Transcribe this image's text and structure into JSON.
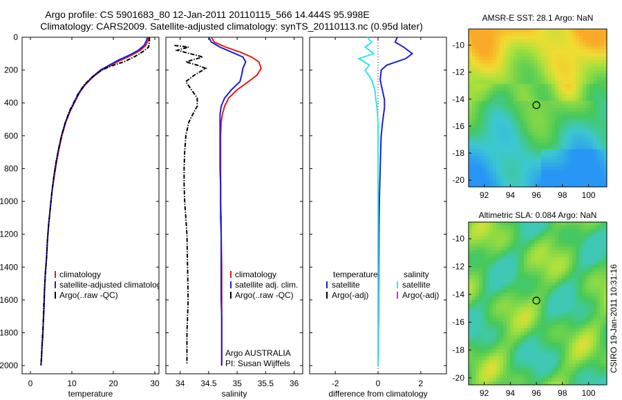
{
  "header": {
    "line1": "Argo profile: CS 5901683_80 12-Jan-2011 20110115_566 14.444S 95.998E",
    "line2": "Climatology: CARS2009. Satellite-adjusted climatology: synTS_20110113.nc (0.95d later)"
  },
  "credit": "CSIRO 19-Jan-2011 10:31:16",
  "colors": {
    "climatology": "#e41a1c",
    "satellite": "#1c1cd8",
    "argo": "#000000",
    "satellite_diff_sal": "#2ee6e6",
    "argo_adj_sal": "#e020e0"
  },
  "chart_data": [
    {
      "type": "line",
      "id": "temperature",
      "xlabel": "temperature",
      "ylabel": "",
      "xlim": [
        -2,
        31
      ],
      "ylim": [
        2050,
        0
      ],
      "xticks": [
        0,
        10,
        20,
        30
      ],
      "yticks": [
        0,
        200,
        400,
        600,
        800,
        1000,
        1200,
        1400,
        1600,
        1800,
        2000
      ],
      "legend": [
        "climatology",
        "satellite-adjusted climatology",
        "Argo(..raw -QC)"
      ],
      "series": [
        {
          "name": "climatology",
          "color": "#e41a1c",
          "style": "solid",
          "x": [
            28.5,
            28.4,
            27.8,
            26.5,
            24.3,
            21.8,
            19.4,
            17.2,
            15.2,
            13.2,
            11.8,
            10.6,
            9.6,
            8.5,
            7.6,
            6.9,
            6.3,
            5.8,
            5.2,
            4.8,
            4.4,
            4.1,
            3.9,
            3.6,
            3.4,
            3.3,
            3.1,
            3.0,
            2.8,
            2.7,
            2.6,
            2.55
          ],
          "y": [
            0,
            20,
            50,
            80,
            110,
            140,
            170,
            200,
            240,
            290,
            340,
            400,
            450,
            520,
            600,
            680,
            760,
            840,
            940,
            1040,
            1140,
            1240,
            1340,
            1440,
            1540,
            1640,
            1740,
            1820,
            1880,
            1940,
            1980,
            2000
          ]
        },
        {
          "name": "satellite-adjusted climatology",
          "color": "#1c1cd8",
          "style": "solid",
          "x": [
            28.2,
            28.0,
            27.4,
            26.0,
            23.8,
            21.2,
            19.0,
            16.9,
            15.0,
            13.1,
            11.7,
            10.5,
            9.5,
            8.4,
            7.5,
            6.8,
            6.2,
            5.7,
            5.2,
            4.8,
            4.4,
            4.1,
            3.9,
            3.6,
            3.4,
            3.3,
            3.1,
            3.0,
            2.8,
            2.7,
            2.6,
            2.55
          ],
          "y": [
            0,
            20,
            50,
            80,
            110,
            140,
            170,
            200,
            240,
            290,
            340,
            400,
            450,
            520,
            600,
            680,
            760,
            840,
            940,
            1040,
            1140,
            1240,
            1340,
            1440,
            1540,
            1640,
            1740,
            1820,
            1880,
            1940,
            1980,
            2000
          ]
        },
        {
          "name": "Argo(..raw -QC)",
          "color": "#000000",
          "style": "dashdot",
          "x": [
            28.7,
            28.7,
            28.5,
            27.0,
            25.0,
            22.5,
            19.5,
            17.2,
            15.0,
            13.0,
            11.6,
            10.4,
            9.4,
            8.4,
            7.5,
            6.8,
            6.2,
            5.7,
            5.2,
            4.8,
            4.4,
            4.1,
            3.9,
            3.6,
            3.4,
            3.2,
            3.1,
            2.9,
            2.8,
            2.7,
            2.6,
            2.5
          ],
          "y": [
            0,
            30,
            60,
            90,
            120,
            150,
            175,
            200,
            240,
            290,
            340,
            400,
            450,
            520,
            600,
            680,
            760,
            840,
            940,
            1040,
            1140,
            1240,
            1340,
            1440,
            1540,
            1640,
            1740,
            1820,
            1880,
            1940,
            1980,
            2000
          ]
        }
      ]
    },
    {
      "type": "line",
      "id": "salinity",
      "xlabel": "salinity",
      "ylabel": "",
      "xlim": [
        33.75,
        36.15
      ],
      "ylim": [
        2050,
        0
      ],
      "xticks": [
        34,
        34.5,
        35,
        35.5,
        36
      ],
      "legend": [
        "climatology",
        "satellite adj. clim.",
        "Argo(..raw -QC)"
      ],
      "annotation": [
        "Argo AUSTRALIA",
        "PI: Susan Wijffels"
      ],
      "series": [
        {
          "name": "climatology",
          "color": "#e41a1c",
          "style": "solid",
          "x": [
            34.55,
            34.6,
            34.8,
            35.05,
            35.25,
            35.38,
            35.42,
            35.35,
            35.2,
            35.0,
            34.85,
            34.78,
            34.74,
            34.72,
            34.71,
            34.71,
            34.71,
            34.71,
            34.71,
            34.72,
            34.72,
            34.73,
            34.73,
            34.73,
            34.73,
            34.73,
            34.73
          ],
          "y": [
            0,
            30,
            60,
            90,
            120,
            150,
            190,
            230,
            270,
            320,
            370,
            420,
            470,
            520,
            600,
            700,
            800,
            900,
            1000,
            1100,
            1200,
            1400,
            1600,
            1700,
            1800,
            1900,
            2000
          ]
        },
        {
          "name": "satellite adj. clim.",
          "color": "#1c1cd8",
          "style": "solid",
          "x": [
            34.5,
            34.55,
            34.7,
            34.9,
            35.1,
            35.15,
            35.1,
            35.08,
            35.05,
            34.9,
            34.78,
            34.72,
            34.7,
            34.7,
            34.7,
            34.7,
            34.7,
            34.71,
            34.71,
            34.71,
            34.72,
            34.72,
            34.72,
            34.73,
            34.73,
            34.73,
            34.73
          ],
          "y": [
            0,
            30,
            60,
            90,
            120,
            150,
            190,
            230,
            270,
            320,
            370,
            420,
            470,
            520,
            600,
            700,
            800,
            900,
            1000,
            1100,
            1200,
            1400,
            1600,
            1700,
            1800,
            1900,
            2000
          ]
        },
        {
          "name": "Argo(..raw -QC)",
          "color": "#000000",
          "style": "dashdot",
          "x": [
            33.9,
            34.15,
            33.95,
            34.4,
            34.1,
            34.3,
            34.45,
            34.25,
            34.1,
            34.2,
            34.3,
            34.3,
            34.22,
            34.15,
            34.1,
            34.08,
            34.07,
            34.07,
            34.08,
            34.1,
            34.12,
            34.13,
            34.14,
            34.13,
            34.12,
            34.12,
            34.12
          ],
          "y": [
            50,
            60,
            80,
            120,
            150,
            170,
            190,
            230,
            270,
            320,
            370,
            420,
            470,
            520,
            600,
            700,
            800,
            900,
            1000,
            1100,
            1200,
            1400,
            1600,
            1700,
            1800,
            1900,
            1990
          ]
        }
      ]
    },
    {
      "type": "line",
      "id": "difference",
      "xlabel": "difference from climatology",
      "ylabel": "",
      "xlim": [
        -3.2,
        3.2
      ],
      "ylim": [
        2050,
        0
      ],
      "xticks": [
        -2,
        0,
        2
      ],
      "legend_left": [
        "temperature",
        "satellite",
        "Argo(-adj)"
      ],
      "legend_right": [
        "salinity",
        "satellite",
        "Argo(-adj)"
      ],
      "series": [
        {
          "name": "satellite",
          "group": "temperature",
          "color": "#1c1cd8",
          "style": "solid",
          "x": [
            0.9,
            0.8,
            1.2,
            1.6,
            1.3,
            0.4,
            0.15,
            0.1,
            0.2,
            0.3,
            0.3,
            0.25,
            0.2,
            0.15,
            0.12,
            0.1,
            0.08,
            0.06,
            0.05,
            0.04,
            0.03,
            0.02,
            0.02,
            0.01,
            0.01,
            0.0
          ],
          "y": [
            0,
            30,
            60,
            100,
            130,
            170,
            200,
            260,
            320,
            380,
            430,
            480,
            530,
            600,
            700,
            800,
            900,
            1000,
            1100,
            1200,
            1400,
            1600,
            1700,
            1800,
            1900,
            2000
          ]
        },
        {
          "name": "satellite",
          "group": "salinity",
          "color": "#2ee6e6",
          "style": "solid",
          "x": [
            -0.5,
            -0.3,
            -0.6,
            -0.2,
            -0.9,
            -0.4,
            -0.6,
            -0.3,
            -0.15,
            -0.1,
            -0.05,
            -0.02,
            0.0,
            0.0,
            0.0,
            0.0,
            0.0,
            0.0,
            0.0,
            0.0,
            0.0,
            0.0,
            0.0,
            0.0,
            0.0,
            0.0
          ],
          "y": [
            0,
            30,
            60,
            100,
            130,
            170,
            200,
            260,
            320,
            380,
            430,
            480,
            530,
            600,
            700,
            800,
            900,
            1000,
            1100,
            1200,
            1400,
            1600,
            1700,
            1800,
            1900,
            2000
          ]
        }
      ]
    },
    {
      "type": "heatmap",
      "id": "sst",
      "title": "AMSR-E SST: 28.1 Argo: NaN",
      "xlim": [
        90.8,
        101.4
      ],
      "ylim": [
        -20.5,
        -8.8
      ],
      "xticks": [
        92,
        94,
        96,
        98,
        100
      ],
      "yticks": [
        -10,
        -12,
        -14,
        -16,
        -18,
        -20
      ],
      "marker": {
        "lon": 96.0,
        "lat": -14.444
      }
    },
    {
      "type": "heatmap",
      "id": "sla",
      "title": "Altimetric SLA: 0.084 Argo: NaN",
      "xlim": [
        90.8,
        101.4
      ],
      "ylim": [
        -20.5,
        -8.8
      ],
      "xticks": [
        92,
        94,
        96,
        98,
        100
      ],
      "yticks": [
        -10,
        -12,
        -14,
        -16,
        -18,
        -20
      ],
      "marker": {
        "lon": 96.0,
        "lat": -14.444
      }
    }
  ]
}
